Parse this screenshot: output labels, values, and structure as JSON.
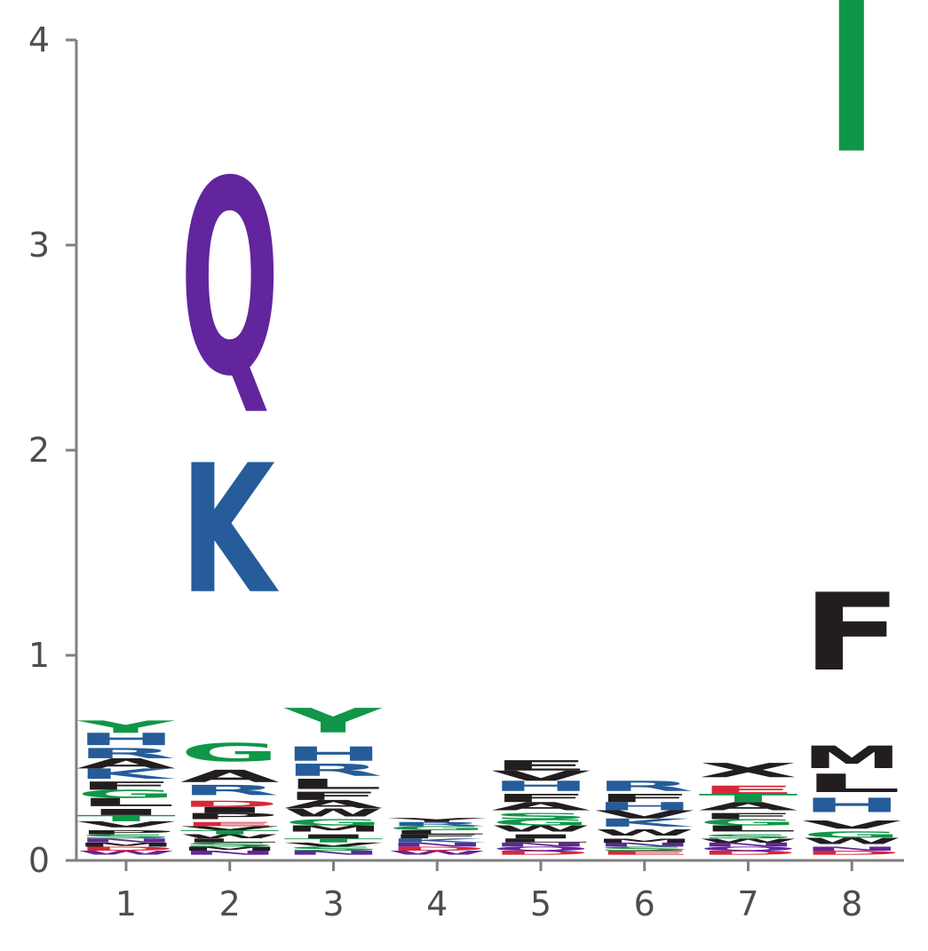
{
  "chart_data": {
    "type": "sequence-logo",
    "title": "",
    "xlabel": "",
    "ylabel": "",
    "ylim": [
      0,
      4
    ],
    "yticks": [
      "0",
      "1",
      "2",
      "3",
      "4"
    ],
    "positions": [
      "1",
      "2",
      "3",
      "4",
      "5",
      "6",
      "7",
      "8"
    ],
    "colors": {
      "green": "#109648",
      "blue": "#255c99",
      "purple": "#62259d",
      "black": "#221e1f",
      "red": "#d62839",
      "axis": "#7f7f7f"
    },
    "stacks": [
      {
        "position": "1",
        "letters": [
          {
            "letter": "W",
            "height": 0.02,
            "color": "purple"
          },
          {
            "letter": "D",
            "height": 0.02,
            "color": "red"
          },
          {
            "letter": "M",
            "height": 0.02,
            "color": "black"
          },
          {
            "letter": "N",
            "height": 0.02,
            "color": "purple"
          },
          {
            "letter": "S",
            "height": 0.02,
            "color": "green"
          },
          {
            "letter": "P",
            "height": 0.02,
            "color": "black"
          },
          {
            "letter": "V",
            "height": 0.03,
            "color": "black"
          },
          {
            "letter": "T",
            "height": 0.03,
            "color": "green"
          },
          {
            "letter": "I",
            "height": 0.03,
            "color": "black"
          },
          {
            "letter": "L",
            "height": 0.04,
            "color": "black"
          },
          {
            "letter": "G",
            "height": 0.04,
            "color": "green"
          },
          {
            "letter": "F",
            "height": 0.04,
            "color": "black"
          },
          {
            "letter": "K",
            "height": 0.05,
            "color": "blue"
          },
          {
            "letter": "A",
            "height": 0.05,
            "color": "black"
          },
          {
            "letter": "R",
            "height": 0.05,
            "color": "blue"
          },
          {
            "letter": "H",
            "height": 0.06,
            "color": "blue"
          },
          {
            "letter": "Y",
            "height": 0.06,
            "color": "green"
          }
        ]
      },
      {
        "position": "2",
        "letters": [
          {
            "letter": "N",
            "height": 0.02,
            "color": "purple"
          },
          {
            "letter": "M",
            "height": 0.02,
            "color": "black"
          },
          {
            "letter": "S",
            "height": 0.02,
            "color": "green"
          },
          {
            "letter": "L",
            "height": 0.02,
            "color": "black"
          },
          {
            "letter": "W",
            "height": 0.02,
            "color": "black"
          },
          {
            "letter": "T",
            "height": 0.02,
            "color": "green"
          },
          {
            "letter": "V",
            "height": 0.02,
            "color": "black"
          },
          {
            "letter": "E",
            "height": 0.02,
            "color": "red"
          },
          {
            "letter": "P",
            "height": 0.03,
            "color": "black"
          },
          {
            "letter": "I",
            "height": 0.03,
            "color": "black"
          },
          {
            "letter": "D",
            "height": 0.03,
            "color": "red"
          },
          {
            "letter": "R",
            "height": 0.05,
            "color": "blue"
          },
          {
            "letter": "A",
            "height": 0.06,
            "color": "black"
          },
          {
            "letter": "G",
            "height": 0.09,
            "color": "green"
          },
          {
            "letter": "K",
            "height": 0.63,
            "color": "blue"
          },
          {
            "letter": "Q",
            "height": 0.95,
            "color": "purple"
          }
        ]
      },
      {
        "position": "3",
        "letters": [
          {
            "letter": "N",
            "height": 0.02,
            "color": "purple"
          },
          {
            "letter": "S",
            "height": 0.02,
            "color": "green"
          },
          {
            "letter": "V",
            "height": 0.02,
            "color": "black"
          },
          {
            "letter": "T",
            "height": 0.02,
            "color": "green"
          },
          {
            "letter": "I",
            "height": 0.02,
            "color": "black"
          },
          {
            "letter": "M",
            "height": 0.03,
            "color": "black"
          },
          {
            "letter": "G",
            "height": 0.03,
            "color": "green"
          },
          {
            "letter": "W",
            "height": 0.04,
            "color": "black"
          },
          {
            "letter": "A",
            "height": 0.04,
            "color": "black"
          },
          {
            "letter": "F",
            "height": 0.04,
            "color": "black"
          },
          {
            "letter": "L",
            "height": 0.05,
            "color": "black"
          },
          {
            "letter": "R",
            "height": 0.06,
            "color": "blue"
          },
          {
            "letter": "H",
            "height": 0.07,
            "color": "blue"
          },
          {
            "letter": "Y",
            "height": 0.12,
            "color": "green"
          }
        ]
      },
      {
        "position": "4",
        "letters": [
          {
            "letter": "W",
            "height": 0.02,
            "color": "purple"
          },
          {
            "letter": "D",
            "height": 0.02,
            "color": "red"
          },
          {
            "letter": "N",
            "height": 0.02,
            "color": "purple"
          },
          {
            "letter": "K",
            "height": 0.02,
            "color": "blue"
          },
          {
            "letter": "F",
            "height": 0.02,
            "color": "black"
          },
          {
            "letter": "L",
            "height": 0.02,
            "color": "black"
          },
          {
            "letter": "G",
            "height": 0.02,
            "color": "green"
          },
          {
            "letter": "R",
            "height": 0.02,
            "color": "blue"
          },
          {
            "letter": "Y",
            "height": 0.02,
            "color": "black"
          }
        ]
      },
      {
        "position": "5",
        "letters": [
          {
            "letter": "D",
            "height": 0.02,
            "color": "red"
          },
          {
            "letter": "Q",
            "height": 0.02,
            "color": "purple"
          },
          {
            "letter": "N",
            "height": 0.02,
            "color": "purple"
          },
          {
            "letter": "L",
            "height": 0.02,
            "color": "black"
          },
          {
            "letter": "I",
            "height": 0.02,
            "color": "black"
          },
          {
            "letter": "W",
            "height": 0.03,
            "color": "black"
          },
          {
            "letter": "G",
            "height": 0.03,
            "color": "green"
          },
          {
            "letter": "S",
            "height": 0.03,
            "color": "green"
          },
          {
            "letter": "A",
            "height": 0.04,
            "color": "black"
          },
          {
            "letter": "F",
            "height": 0.04,
            "color": "black"
          },
          {
            "letter": "H",
            "height": 0.05,
            "color": "blue"
          },
          {
            "letter": "V",
            "height": 0.05,
            "color": "black"
          },
          {
            "letter": "E",
            "height": 0.05,
            "color": "black"
          }
        ]
      },
      {
        "position": "6",
        "letters": [
          {
            "letter": "E",
            "height": 0.02,
            "color": "red"
          },
          {
            "letter": "S",
            "height": 0.02,
            "color": "green"
          },
          {
            "letter": "N",
            "height": 0.02,
            "color": "purple"
          },
          {
            "letter": "M",
            "height": 0.02,
            "color": "black"
          },
          {
            "letter": "W",
            "height": 0.03,
            "color": "black"
          },
          {
            "letter": "K",
            "height": 0.04,
            "color": "blue"
          },
          {
            "letter": "V",
            "height": 0.04,
            "color": "black"
          },
          {
            "letter": "H",
            "height": 0.04,
            "color": "blue"
          },
          {
            "letter": "F",
            "height": 0.04,
            "color": "black"
          },
          {
            "letter": "R",
            "height": 0.05,
            "color": "blue"
          }
        ]
      },
      {
        "position": "7",
        "letters": [
          {
            "letter": "D",
            "height": 0.02,
            "color": "red"
          },
          {
            "letter": "Q",
            "height": 0.02,
            "color": "purple"
          },
          {
            "letter": "N",
            "height": 0.02,
            "color": "purple"
          },
          {
            "letter": "W",
            "height": 0.02,
            "color": "black"
          },
          {
            "letter": "S",
            "height": 0.02,
            "color": "green"
          },
          {
            "letter": "L",
            "height": 0.03,
            "color": "black"
          },
          {
            "letter": "G",
            "height": 0.03,
            "color": "green"
          },
          {
            "letter": "F",
            "height": 0.03,
            "color": "black"
          },
          {
            "letter": "A",
            "height": 0.04,
            "color": "black"
          },
          {
            "letter": "T",
            "height": 0.04,
            "color": "green"
          },
          {
            "letter": "E",
            "height": 0.04,
            "color": "red"
          },
          {
            "letter": "X",
            "height": 0.07,
            "color": "black"
          }
        ]
      },
      {
        "position": "8",
        "letters": [
          {
            "letter": "D",
            "height": 0.02,
            "color": "red"
          },
          {
            "letter": "N",
            "height": 0.02,
            "color": "purple"
          },
          {
            "letter": "W",
            "height": 0.03,
            "color": "black"
          },
          {
            "letter": "G",
            "height": 0.03,
            "color": "green"
          },
          {
            "letter": "V",
            "height": 0.04,
            "color": "black"
          },
          {
            "letter": "H",
            "height": 0.07,
            "color": "blue"
          },
          {
            "letter": "L",
            "height": 0.09,
            "color": "black"
          },
          {
            "letter": "M",
            "height": 0.11,
            "color": "black"
          },
          {
            "letter": "F",
            "height": 0.38,
            "color": "black"
          },
          {
            "letter": "Y",
            "height": 1.95,
            "color": "green"
          }
        ]
      }
    ]
  }
}
